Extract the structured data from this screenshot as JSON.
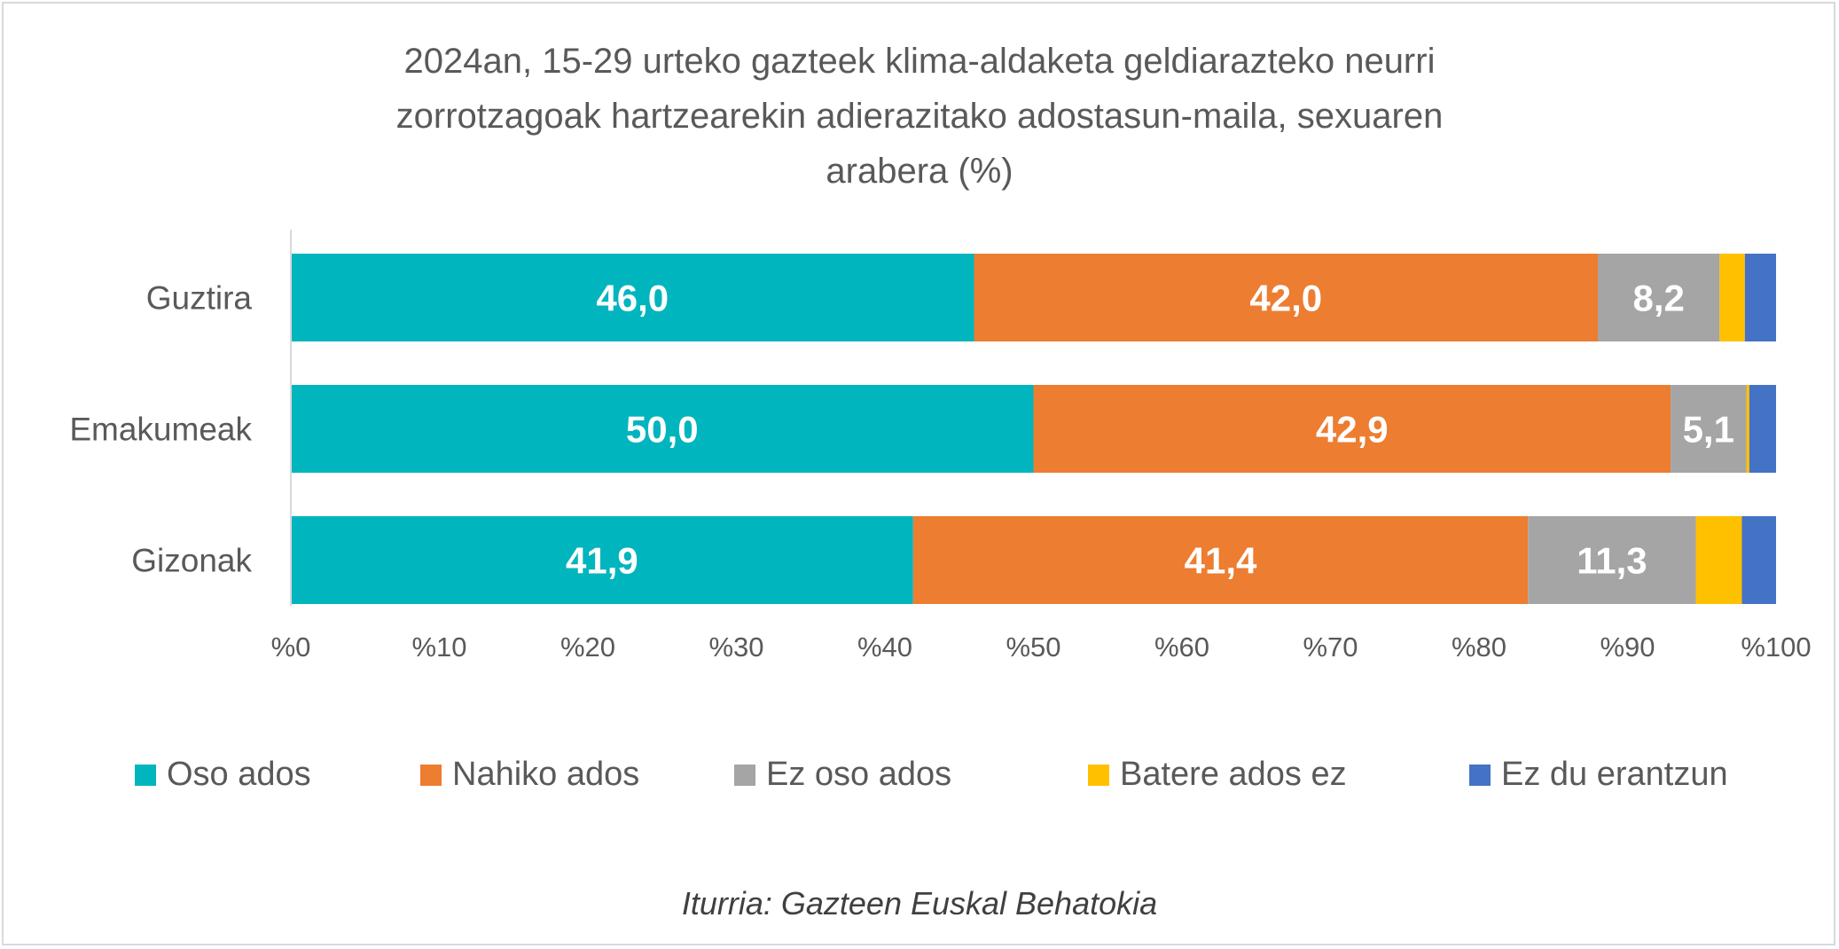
{
  "chart_data": {
    "type": "bar",
    "orientation": "horizontal",
    "stacked": "percent",
    "title": "2024an, 15-29 urteko gazteek klima-aldaketa geldiarazteko neurri zorrotzagoak hartzearekin adierazitako adostasun-maila, sexuaren arabera (%)",
    "title_lines": [
      "2024an, 15-29 urteko gazteek klima-aldaketa geldiarazteko neurri",
      "zorrotzagoak hartzearekin adierazitako adostasun-maila, sexuaren",
      "arabera (%)"
    ],
    "categories": [
      "Guztira",
      "Emakumeak",
      "Gizonak"
    ],
    "series": [
      {
        "name": "Oso ados",
        "color": "#00B5BE",
        "values": [
          46.0,
          50.0,
          41.9
        ],
        "labels": [
          "46,0",
          "50,0",
          "41,9"
        ]
      },
      {
        "name": "Nahiko ados",
        "color": "#ED7D31",
        "values": [
          42.0,
          42.9,
          41.4
        ],
        "labels": [
          "42,0",
          "42,9",
          "41,4"
        ]
      },
      {
        "name": "Ez oso ados",
        "color": "#A5A5A5",
        "values": [
          8.2,
          5.1,
          11.3
        ],
        "labels": [
          "8,2",
          "5,1",
          "11,3"
        ]
      },
      {
        "name": "Batere ados ez",
        "color": "#FFC000",
        "values": [
          1.7,
          0.2,
          3.1
        ],
        "labels": [
          "",
          "",
          ""
        ]
      },
      {
        "name": "Ez du erantzun",
        "color": "#4472C4",
        "values": [
          2.1,
          1.8,
          2.3
        ],
        "labels": [
          "",
          "",
          ""
        ]
      }
    ],
    "xlim": [
      0,
      100
    ],
    "xticks": [
      "%0",
      "%10",
      "%20",
      "%30",
      "%40",
      "%50",
      "%60",
      "%70",
      "%80",
      "%90",
      "%100"
    ],
    "grid": false,
    "legend": "bottom",
    "source": "Iturria: Gazteen Euskal Behatokia"
  }
}
